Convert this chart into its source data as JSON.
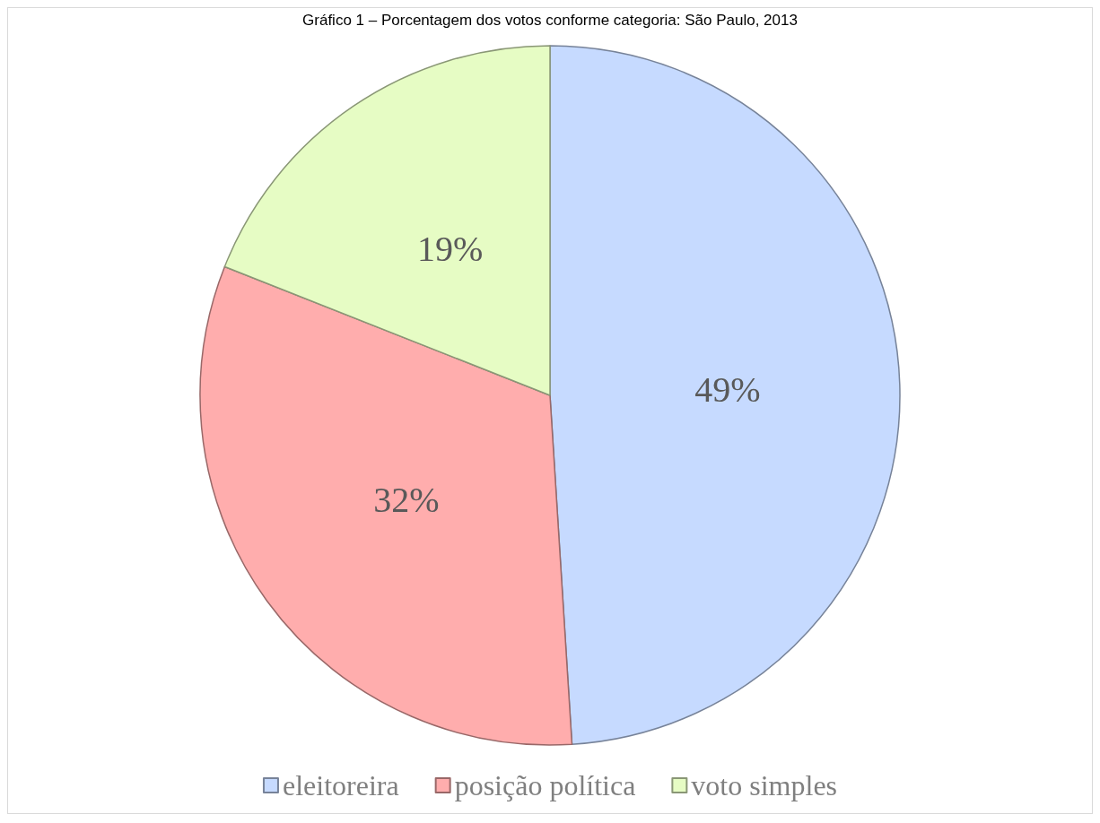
{
  "chart_data": {
    "type": "pie",
    "title": "Gráfico 1 – Porcentagem dos votos conforme categoria: São Paulo, 2013",
    "categories": [
      "eleitoreira",
      "posição política",
      "voto simples"
    ],
    "values": [
      49,
      32,
      19
    ],
    "colors": [
      "#c6daff",
      "#ffadad",
      "#e6fcc4"
    ],
    "value_labels": [
      "49%",
      "32%",
      "19%"
    ],
    "legend": "bottom"
  }
}
